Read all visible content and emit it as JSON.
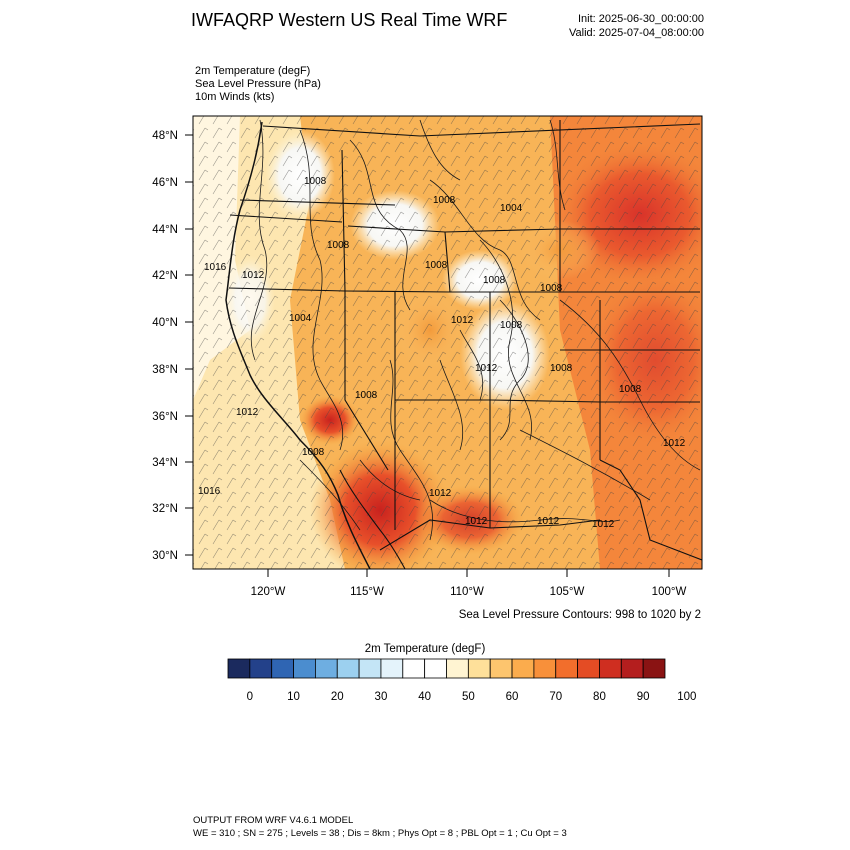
{
  "header": {
    "title": "IWFAQRP Western US Real Time WRF",
    "init": "Init: 2025-06-30_00:00:00",
    "valid": "Valid: 2025-07-04_08:00:00"
  },
  "variables": [
    "2m Temperature   (degF)",
    "Sea Level Pressure   (hPa)",
    "10m Winds   (kts)"
  ],
  "map": {
    "lat_labels": [
      "48°N",
      "46°N",
      "44°N",
      "42°N",
      "40°N",
      "38°N",
      "36°N",
      "34°N",
      "32°N",
      "30°N"
    ],
    "lon_labels": [
      "120°W",
      "115°W",
      "110°W",
      "105°W",
      "100°W"
    ],
    "pressure_labels": [
      "1008",
      "1008",
      "1004",
      "1008",
      "1008",
      "1016",
      "1012",
      "1008",
      "1008",
      "1004",
      "1012",
      "1008",
      "1012",
      "1008",
      "1008",
      "1012",
      "1008",
      "1008",
      "1012",
      "1016",
      "1012",
      "1012",
      "1012",
      "1012"
    ],
    "pressure_note": "Sea Level Pressure Contours: 998 to 1020 by 2",
    "colors": {
      "hot": "#e8582c",
      "warm": "#f6a53a",
      "mild": "#fcd38c",
      "cool": "#fff1c9",
      "cold": "#ffffff",
      "contour": "#1a1a1a"
    }
  },
  "colorbar": {
    "title": "2m Temperature   (degF)",
    "colors": [
      "#1b2a5e",
      "#23418a",
      "#2f65b3",
      "#4b8dcf",
      "#6eaee1",
      "#9cd0ef",
      "#c4e5f6",
      "#e4f3fb",
      "#ffffff",
      "#ffffff",
      "#fff4d2",
      "#fee09a",
      "#fdc56e",
      "#fbac4d",
      "#f8903a",
      "#f26e2c",
      "#e44c24",
      "#cf2e20",
      "#b41e1e",
      "#8a1313"
    ],
    "tick_labels": [
      "0",
      "10",
      "20",
      "30",
      "40",
      "50",
      "60",
      "70",
      "80",
      "90",
      "100"
    ]
  },
  "footer": {
    "line1": "OUTPUT FROM WRF V4.6.1 MODEL",
    "line2": "WE = 310 ; SN = 275 ; Levels = 38 ; Dis = 8km ; Phys Opt = 8 ; PBL Opt = 1 ; Cu Opt = 3"
  }
}
